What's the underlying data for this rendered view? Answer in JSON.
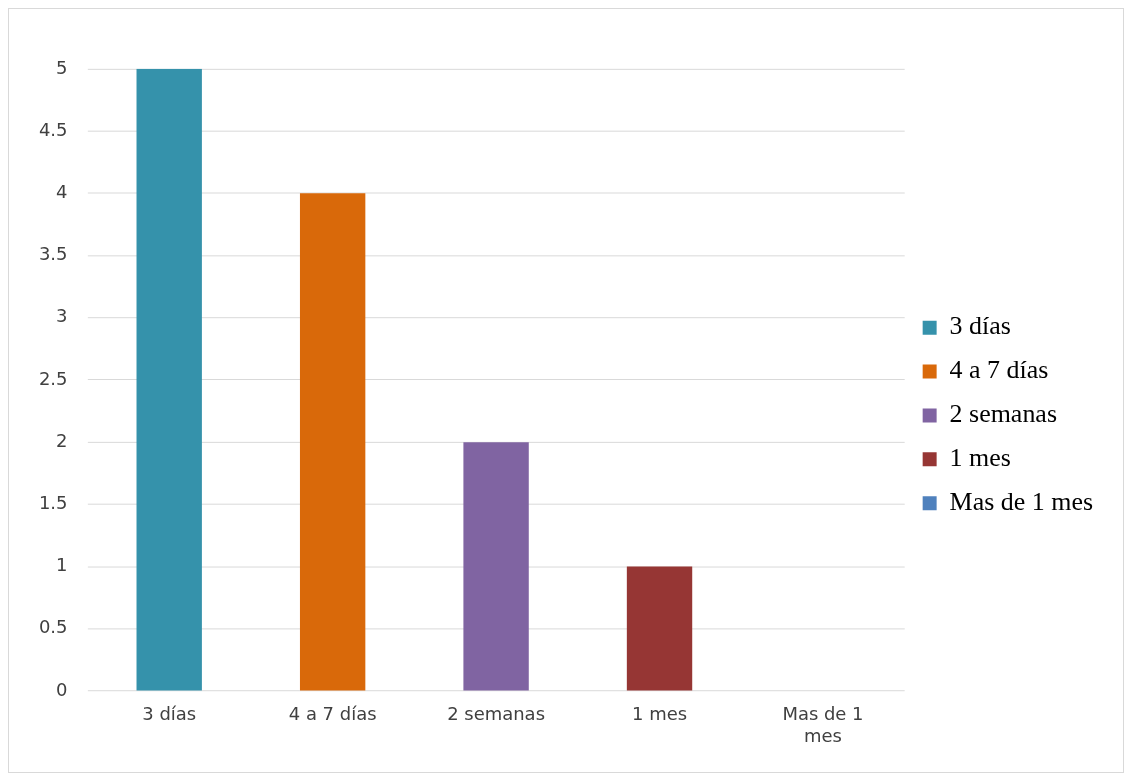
{
  "chart_data": {
    "type": "bar",
    "categories": [
      "3 días",
      "4 a 7 días",
      "2 semanas",
      "1 mes",
      "Mas de 1 mes"
    ],
    "series": [
      {
        "name": "3 días",
        "color": "#3592ab",
        "values": [
          5,
          null,
          null,
          null,
          null
        ]
      },
      {
        "name": "4 a 7 días",
        "color": "#d9690a",
        "values": [
          null,
          4,
          null,
          null,
          null
        ]
      },
      {
        "name": "2 semanas",
        "color": "#8064a2",
        "values": [
          null,
          null,
          2,
          null,
          null
        ]
      },
      {
        "name": "1 mes",
        "color": "#963634",
        "values": [
          null,
          null,
          null,
          1,
          null
        ]
      },
      {
        "name": "Mas de 1 mes",
        "color": "#4f81bd",
        "values": [
          null,
          null,
          null,
          null,
          0
        ]
      }
    ],
    "ylim": [
      0,
      5
    ],
    "yticks": [
      0,
      0.5,
      1,
      1.5,
      2,
      2.5,
      3,
      3.5,
      4,
      4.5,
      5
    ],
    "grid": "y",
    "legend": "right"
  }
}
